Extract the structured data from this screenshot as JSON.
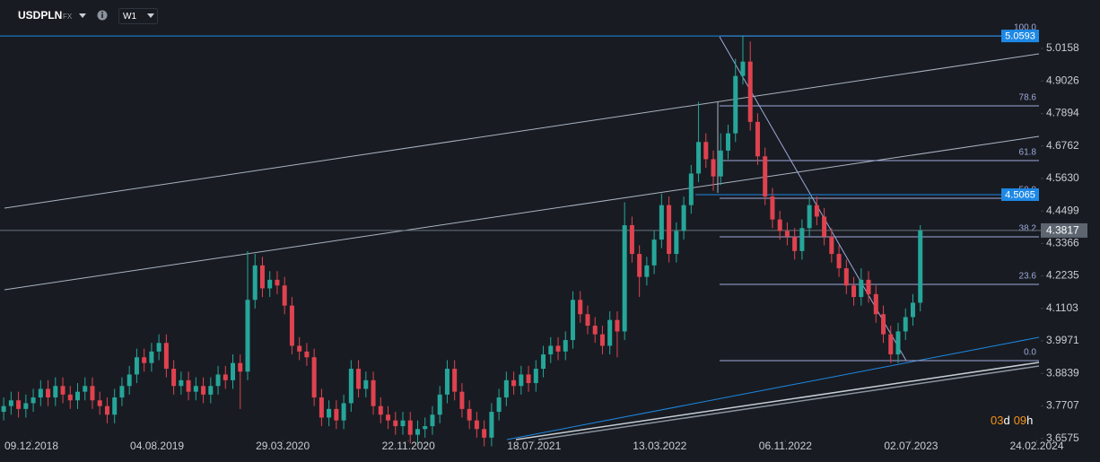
{
  "header": {
    "symbol": "USDPLN",
    "market": "FX",
    "timeframe": "W1"
  },
  "chart_data": {
    "type": "candlestick",
    "up_color": "#26a69a",
    "down_color": "#e0424f",
    "open": [
      3.75,
      3.77,
      3.79,
      3.76,
      3.78,
      3.8,
      3.83,
      3.8,
      3.84,
      3.81,
      3.79,
      3.82,
      3.84,
      3.79,
      3.77,
      3.74,
      3.8,
      3.84,
      3.88,
      3.94,
      3.92,
      3.96,
      3.99,
      3.9,
      3.84,
      3.86,
      3.82,
      3.84,
      3.81,
      3.84,
      3.88,
      3.86,
      3.92,
      3.89,
      4.14,
      4.26,
      4.18,
      4.21,
      4.19,
      4.12,
      3.98,
      3.96,
      3.94,
      3.8,
      3.73,
      3.76,
      3.72,
      3.78,
      3.9,
      3.83,
      3.86,
      3.77,
      3.74,
      3.72,
      3.7,
      3.72,
      3.67,
      3.69,
      3.7,
      3.74,
      3.81,
      3.9,
      3.82,
      3.76,
      3.72,
      3.69,
      3.66,
      3.75,
      3.8,
      3.86,
      3.84,
      3.88,
      3.85,
      3.9,
      3.95,
      3.98,
      3.96,
      4.0,
      4.14,
      4.09,
      4.05,
      4.02,
      3.98,
      4.07,
      4.03,
      4.4,
      4.3,
      4.22,
      4.26,
      4.35,
      4.47,
      4.3,
      4.38,
      4.47,
      4.58,
      4.69,
      4.63,
      4.57,
      4.66,
      4.72,
      4.92,
      4.97,
      4.76,
      4.64,
      4.5,
      4.42,
      4.38,
      4.36,
      4.31,
      4.39,
      4.47,
      4.43,
      4.36,
      4.3,
      4.25,
      4.19,
      4.15,
      4.21,
      4.16,
      4.09,
      4.02,
      3.95,
      4.03,
      4.08,
      4.13
    ],
    "high": [
      3.8,
      3.82,
      3.82,
      3.81,
      3.83,
      3.86,
      3.86,
      3.87,
      3.87,
      3.84,
      3.85,
      3.87,
      3.87,
      3.82,
      3.8,
      3.83,
      3.87,
      3.91,
      3.97,
      3.97,
      3.99,
      4.02,
      4.02,
      3.93,
      3.89,
      3.89,
      3.87,
      3.87,
      3.87,
      3.91,
      3.91,
      3.95,
      3.95,
      4.31,
      4.3,
      4.29,
      4.24,
      4.24,
      4.22,
      4.15,
      4.01,
      3.99,
      3.97,
      3.83,
      3.79,
      3.79,
      3.81,
      3.93,
      3.93,
      3.89,
      3.89,
      3.8,
      3.77,
      3.75,
      3.75,
      3.75,
      3.72,
      3.73,
      3.77,
      3.84,
      3.93,
      3.93,
      3.85,
      3.79,
      3.75,
      3.72,
      3.78,
      3.83,
      3.89,
      3.89,
      3.91,
      3.91,
      3.93,
      3.98,
      4.01,
      4.01,
      4.03,
      4.17,
      4.17,
      4.12,
      4.08,
      4.05,
      4.1,
      4.1,
      4.48,
      4.43,
      4.33,
      4.29,
      4.38,
      4.51,
      4.5,
      4.41,
      4.5,
      4.61,
      4.83,
      4.72,
      4.66,
      4.72,
      4.75,
      4.98,
      5.06,
      5.04,
      4.79,
      4.67,
      4.53,
      4.45,
      4.41,
      4.39,
      4.42,
      4.5,
      4.5,
      4.46,
      4.39,
      4.33,
      4.28,
      4.22,
      4.25,
      4.24,
      4.19,
      4.12,
      4.05,
      4.06,
      4.11,
      4.16,
      4.4
    ],
    "low": [
      3.72,
      3.74,
      3.73,
      3.73,
      3.75,
      3.77,
      3.77,
      3.77,
      3.78,
      3.76,
      3.76,
      3.79,
      3.76,
      3.74,
      3.71,
      3.71,
      3.77,
      3.81,
      3.85,
      3.89,
      3.89,
      3.93,
      3.87,
      3.81,
      3.81,
      3.79,
      3.79,
      3.78,
      3.78,
      3.81,
      3.83,
      3.83,
      3.76,
      3.86,
      4.11,
      4.15,
      4.15,
      4.16,
      4.09,
      3.95,
      3.93,
      3.91,
      3.77,
      3.7,
      3.7,
      3.69,
      3.69,
      3.75,
      3.8,
      3.8,
      3.74,
      3.71,
      3.69,
      3.67,
      3.67,
      3.64,
      3.64,
      3.66,
      3.67,
      3.71,
      3.78,
      3.79,
      3.73,
      3.69,
      3.66,
      3.63,
      3.63,
      3.72,
      3.77,
      3.81,
      3.81,
      3.82,
      3.82,
      3.87,
      3.92,
      3.93,
      3.93,
      3.97,
      4.06,
      4.02,
      3.99,
      3.95,
      3.95,
      3.94,
      4.0,
      4.27,
      4.15,
      4.19,
      4.23,
      4.32,
      4.27,
      4.27,
      4.35,
      4.44,
      4.55,
      4.6,
      4.52,
      4.54,
      4.63,
      4.69,
      4.89,
      4.73,
      4.61,
      4.47,
      4.39,
      4.35,
      4.33,
      4.28,
      4.28,
      4.36,
      4.4,
      4.33,
      4.27,
      4.22,
      4.16,
      4.12,
      4.12,
      4.13,
      4.06,
      3.99,
      3.92,
      3.92,
      4.0,
      4.05,
      4.1
    ],
    "close": [
      3.77,
      3.79,
      3.76,
      3.78,
      3.8,
      3.83,
      3.8,
      3.84,
      3.81,
      3.79,
      3.82,
      3.84,
      3.79,
      3.77,
      3.74,
      3.8,
      3.84,
      3.88,
      3.94,
      3.92,
      3.96,
      3.99,
      3.9,
      3.84,
      3.86,
      3.82,
      3.84,
      3.81,
      3.84,
      3.88,
      3.86,
      3.92,
      3.89,
      4.14,
      4.26,
      4.18,
      4.21,
      4.19,
      4.12,
      3.98,
      3.96,
      3.94,
      3.8,
      3.73,
      3.76,
      3.72,
      3.78,
      3.9,
      3.83,
      3.86,
      3.77,
      3.74,
      3.72,
      3.7,
      3.72,
      3.67,
      3.69,
      3.7,
      3.74,
      3.81,
      3.9,
      3.82,
      3.76,
      3.72,
      3.69,
      3.66,
      3.75,
      3.8,
      3.86,
      3.84,
      3.88,
      3.85,
      3.9,
      3.95,
      3.98,
      3.96,
      4.0,
      4.14,
      4.09,
      4.05,
      4.02,
      3.98,
      4.07,
      4.03,
      4.4,
      4.3,
      4.22,
      4.26,
      4.35,
      4.47,
      4.3,
      4.38,
      4.47,
      4.58,
      4.69,
      4.63,
      4.57,
      4.66,
      4.72,
      4.92,
      4.97,
      4.76,
      4.64,
      4.5,
      4.42,
      4.38,
      4.36,
      4.31,
      4.39,
      4.47,
      4.43,
      4.36,
      4.3,
      4.25,
      4.19,
      4.15,
      4.21,
      4.16,
      4.09,
      4.02,
      3.95,
      4.03,
      4.08,
      4.13,
      4.3817
    ],
    "xlim": [
      -0.5,
      140.3
    ],
    "xticks": [
      {
        "value": 3.75,
        "label": "09.12.2018"
      },
      {
        "value": 20.75,
        "label": "04.08.2019"
      },
      {
        "value": 37.75,
        "label": "29.03.2020"
      },
      {
        "value": 54.75,
        "label": "22.11.2020"
      },
      {
        "value": 71.75,
        "label": "18.07.2021"
      },
      {
        "value": 88.75,
        "label": "13.03.2022"
      },
      {
        "value": 105.75,
        "label": "06.11.2022"
      },
      {
        "value": 122.75,
        "label": "02.07.2023"
      },
      {
        "value": 139.75,
        "label": "24.02.2024"
      }
    ],
    "ylim": [
      3.6533,
      5.18455
    ],
    "yticks": [
      5.0158,
      4.9026,
      4.7894,
      4.6762,
      {
        "value": 4.563,
        "label": "4.5630"
      },
      4.4499,
      4.3366,
      4.2235,
      4.1103,
      3.9971,
      3.8839,
      3.7707,
      3.6575
    ],
    "levels": [
      {
        "value": 5.0593,
        "color": "#1e88e5"
      },
      {
        "value": 4.5065,
        "color": "#1e88e5"
      }
    ],
    "current_price": 4.3817,
    "fib_levels": [
      {
        "value": 5.0593,
        "label": "100.0"
      },
      {
        "value": 4.8158,
        "label": "78.6"
      },
      {
        "value": 4.625,
        "label": "61.8"
      },
      {
        "value": 4.494,
        "label": "50.0"
      },
      {
        "value": 4.3596,
        "label": "38.2"
      },
      {
        "value": 4.194,
        "label": "23.6"
      },
      {
        "value": 3.9283,
        "label": "0.0"
      }
    ],
    "countdown": [
      "03",
      "d",
      "09",
      "h"
    ]
  }
}
